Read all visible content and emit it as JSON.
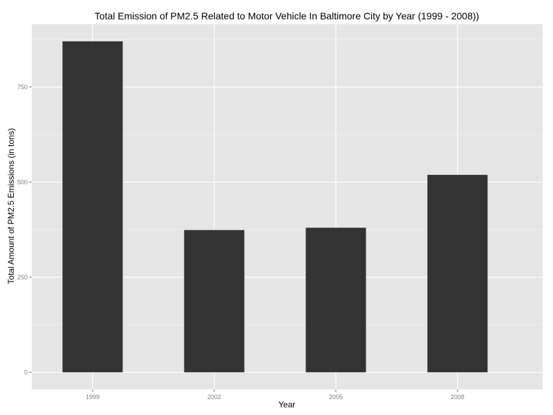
{
  "chart_data": {
    "type": "bar",
    "title": "Total Emission of PM2.5 Related to Motor Vehicle In Baltimore City by Year (1999 - 2008))",
    "xlabel": "Year",
    "ylabel": "Total Amount of PM2.5 Emissions (in tons)",
    "categories": [
      "1999",
      "2002",
      "2005",
      "2008"
    ],
    "values": [
      870,
      374,
      380,
      519
    ],
    "ylim": [
      -45,
      915
    ],
    "yticks": [
      0,
      250,
      500,
      750
    ],
    "ytick_labels": [
      "0",
      "250",
      "500",
      "750"
    ],
    "grid": true,
    "colors": {
      "panel_background": "#e5e5e5",
      "grid_major": "#ffffff",
      "grid_minor": "#f2f2f2",
      "bar_fill": "#333333",
      "tick_mark": "#7f7f7f"
    }
  }
}
